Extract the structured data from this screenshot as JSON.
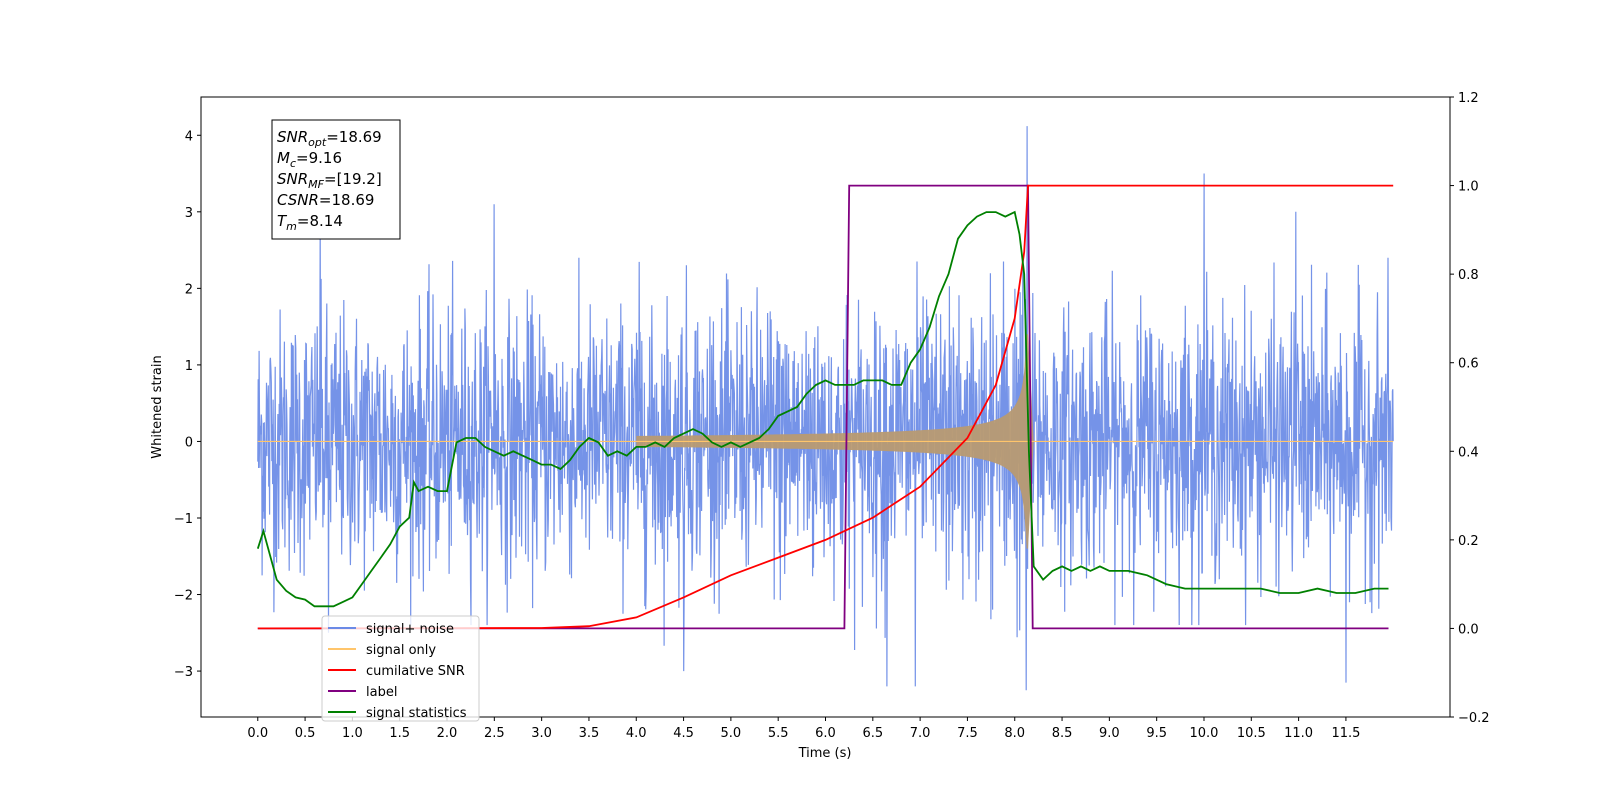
{
  "chart_data": {
    "type": "line",
    "xlabel": "Time (s)",
    "ylabel": "Whitened strain",
    "xlim": [
      -0.6,
      12.6
    ],
    "ylim_left": [
      -3.6,
      4.5
    ],
    "ylim_right": [
      -0.2,
      1.2
    ],
    "x_ticks": [
      "0.0",
      "0.5",
      "1.0",
      "1.5",
      "2.0",
      "2.5",
      "3.0",
      "3.5",
      "4.0",
      "4.5",
      "5.0",
      "5.5",
      "6.0",
      "6.5",
      "7.0",
      "7.5",
      "8.0",
      "8.5",
      "9.0",
      "9.5",
      "10.0",
      "10.5",
      "11.0",
      "11.5"
    ],
    "y_ticks_left": [
      "4",
      "3",
      "2",
      "1",
      "0",
      "−1",
      "−2",
      "−3"
    ],
    "y_ticks_right": [
      "1.2",
      "1.0",
      "0.8",
      "0.6",
      "0.4",
      "0.2",
      "0.0",
      "−0.2"
    ],
    "info_box": {
      "lines": [
        {
          "base": "SNR",
          "sub": "opt",
          "value": "=18.69"
        },
        {
          "base": "M",
          "sub": "c",
          "value": "=9.16"
        },
        {
          "base": "SNR",
          "sub": "MF",
          "value": "=[19.2]"
        },
        {
          "base": "CSNR",
          "sub": "",
          "value": "=18.69"
        },
        {
          "base": "T",
          "sub": "m",
          "value": "=8.14"
        }
      ]
    },
    "legend": {
      "position": "lower-left",
      "entries": [
        {
          "label": "signal+ noise",
          "color": "#6b8ae6"
        },
        {
          "label": "signal only",
          "color": "#ffc56b"
        },
        {
          "label": "cumilative SNR",
          "color": "#ff0000"
        },
        {
          "label": "label",
          "color": "#800080"
        },
        {
          "label": "signal statistics",
          "color": "#008000"
        }
      ]
    },
    "series": [
      {
        "name": "signal+ noise",
        "axis": "left",
        "color": "#7593e8",
        "noise_amplitude_typical": 1.0,
        "x_range": [
          0.0,
          12.0
        ],
        "spikes": [
          [
            0.66,
            2.9
          ],
          [
            0.75,
            -2.5
          ],
          [
            2.5,
            3.1
          ],
          [
            4.5,
            -3.0
          ],
          [
            6.65,
            -3.2
          ],
          [
            6.95,
            -3.2
          ],
          [
            8.13,
            4.12
          ],
          [
            8.12,
            -3.25
          ],
          [
            10.0,
            3.5
          ],
          [
            10.97,
            3.0
          ],
          [
            11.5,
            -3.15
          ]
        ]
      },
      {
        "name": "signal only",
        "axis": "left",
        "color": "#ffc56b",
        "chirp_start": 4.0,
        "merger_time": 8.14,
        "peak_amplitude": 1.4
      },
      {
        "name": "cumilative SNR",
        "axis": "right",
        "color": "#ff0000",
        "x": [
          0.0,
          3.0,
          3.5,
          4.0,
          4.5,
          5.0,
          5.5,
          6.0,
          6.5,
          7.0,
          7.5,
          7.8,
          8.0,
          8.1,
          8.14,
          12.0
        ],
        "y": [
          0.0,
          0.001,
          0.005,
          0.025,
          0.07,
          0.12,
          0.16,
          0.2,
          0.25,
          0.32,
          0.43,
          0.55,
          0.7,
          0.85,
          1.0,
          1.0
        ]
      },
      {
        "name": "label",
        "axis": "right",
        "color": "#800080",
        "x": [
          0.0,
          6.2,
          6.25,
          8.14,
          8.19,
          11.95
        ],
        "y": [
          0.0,
          0.0,
          1.0,
          1.0,
          0.0,
          0.0
        ]
      },
      {
        "name": "signal statistics",
        "axis": "right",
        "color": "#008000",
        "x": [
          0.0,
          0.06,
          0.2,
          0.3,
          0.4,
          0.5,
          0.6,
          0.7,
          0.8,
          0.9,
          1.0,
          1.1,
          1.2,
          1.3,
          1.4,
          1.5,
          1.6,
          1.65,
          1.7,
          1.8,
          1.9,
          2.0,
          2.1,
          2.2,
          2.3,
          2.4,
          2.5,
          2.6,
          2.7,
          2.8,
          2.9,
          3.0,
          3.1,
          3.2,
          3.3,
          3.4,
          3.5,
          3.6,
          3.7,
          3.8,
          3.9,
          4.0,
          4.1,
          4.2,
          4.3,
          4.4,
          4.5,
          4.6,
          4.7,
          4.8,
          4.9,
          5.0,
          5.1,
          5.2,
          5.3,
          5.4,
          5.5,
          5.6,
          5.7,
          5.8,
          5.9,
          6.0,
          6.1,
          6.2,
          6.3,
          6.4,
          6.5,
          6.6,
          6.7,
          6.8,
          6.9,
          7.0,
          7.1,
          7.2,
          7.3,
          7.4,
          7.5,
          7.6,
          7.7,
          7.8,
          7.9,
          8.0,
          8.05,
          8.1,
          8.15,
          8.2,
          8.3,
          8.4,
          8.5,
          8.6,
          8.7,
          8.8,
          8.9,
          9.0,
          9.2,
          9.4,
          9.6,
          9.8,
          10.0,
          10.2,
          10.4,
          10.6,
          10.8,
          11.0,
          11.2,
          11.4,
          11.6,
          11.8,
          11.95
        ],
        "y": [
          0.18,
          0.22,
          0.11,
          0.085,
          0.07,
          0.065,
          0.05,
          0.05,
          0.05,
          0.06,
          0.07,
          0.1,
          0.13,
          0.16,
          0.19,
          0.23,
          0.25,
          0.33,
          0.31,
          0.32,
          0.31,
          0.31,
          0.42,
          0.43,
          0.43,
          0.41,
          0.4,
          0.39,
          0.4,
          0.39,
          0.38,
          0.37,
          0.37,
          0.36,
          0.38,
          0.41,
          0.43,
          0.42,
          0.39,
          0.4,
          0.39,
          0.41,
          0.41,
          0.42,
          0.41,
          0.43,
          0.44,
          0.45,
          0.44,
          0.42,
          0.41,
          0.42,
          0.41,
          0.42,
          0.43,
          0.45,
          0.48,
          0.49,
          0.5,
          0.53,
          0.55,
          0.56,
          0.55,
          0.55,
          0.55,
          0.56,
          0.56,
          0.56,
          0.55,
          0.55,
          0.6,
          0.63,
          0.68,
          0.75,
          0.8,
          0.88,
          0.91,
          0.93,
          0.94,
          0.94,
          0.93,
          0.94,
          0.89,
          0.8,
          0.4,
          0.14,
          0.11,
          0.13,
          0.14,
          0.13,
          0.14,
          0.13,
          0.14,
          0.13,
          0.13,
          0.12,
          0.1,
          0.09,
          0.09,
          0.09,
          0.09,
          0.09,
          0.08,
          0.08,
          0.09,
          0.08,
          0.08,
          0.09,
          0.09
        ]
      }
    ]
  }
}
